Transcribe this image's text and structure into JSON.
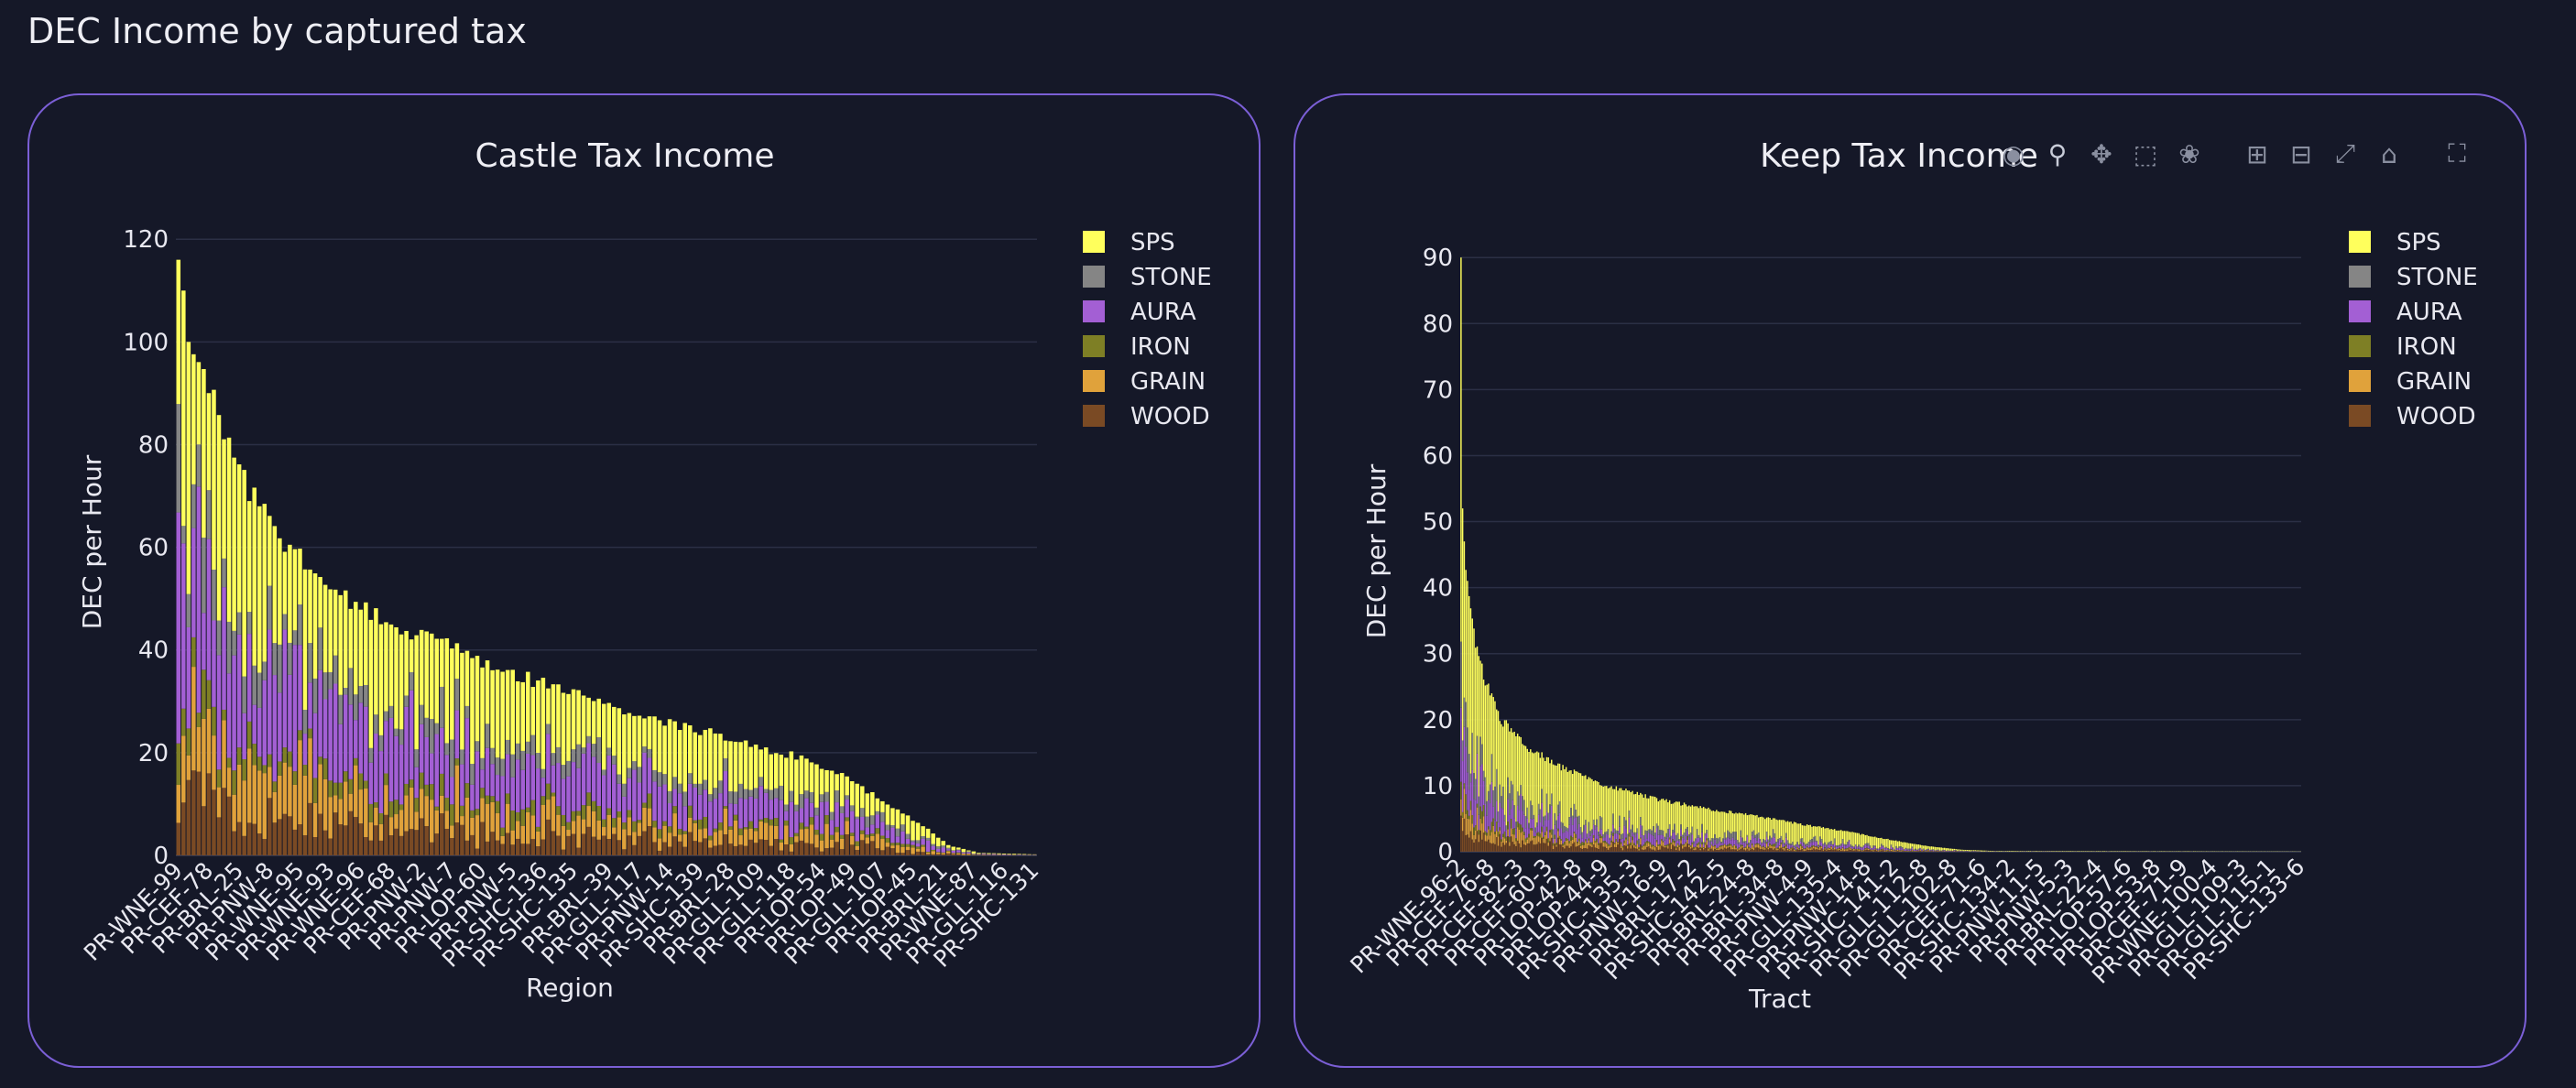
{
  "page": {
    "title": "DEC Income by captured tax"
  },
  "colors": {
    "SPS": "#ffff5c",
    "STONE": "#858585",
    "AURA": "#a35fd4",
    "IRON": "#7e7f25",
    "GRAIN": "#e0a23b",
    "WOOD": "#7a4a24",
    "panel_border": "#7b5fd6",
    "grid": "#2b2f45",
    "background": "#151828"
  },
  "modebar": {
    "icons": [
      "camera-icon",
      "zoom-icon",
      "pan-icon",
      "box-select-icon",
      "lasso-icon",
      "zoom-in-icon",
      "zoom-out-icon",
      "autoscale-icon",
      "home-icon",
      "fullscreen-icon"
    ]
  },
  "chart_data": [
    {
      "id": "castle",
      "type": "bar",
      "stacked": true,
      "title": "Castle Tax Income",
      "xlabel": "Region",
      "ylabel": "DEC per Hour",
      "ylim": [
        0,
        122
      ],
      "yticks": [
        0,
        20,
        40,
        60,
        80,
        100,
        120
      ],
      "legend": [
        "SPS",
        "STONE",
        "AURA",
        "IRON",
        "GRAIN",
        "WOOD"
      ],
      "legend_position": "top-right",
      "n_categories": 170,
      "category_labels": [
        "PR-WNE-99",
        "PR-CEF-78",
        "PR-BRL-25",
        "PR-PNW-8",
        "PR-WNE-95",
        "PR-WNE-93",
        "PR-WNE-96",
        "PR-CEF-68",
        "PR-PNW-2",
        "PR-PNW-7",
        "PR-LOP-60",
        "PR-PNW-5",
        "PR-SHC-136",
        "PR-SHC-135",
        "PR-BRL-39",
        "PR-GLL-117",
        "PR-PNW-14",
        "PR-SHC-139",
        "PR-BRL-28",
        "PR-GLL-109",
        "PR-GLL-118",
        "PR-LOP-54",
        "PR-LOP-49",
        "PR-GLL-107",
        "PR-LOP-45",
        "PR-BRL-21",
        "PR-WNE-87",
        "PR-GLL-116",
        "PR-SHC-131"
      ],
      "totals_profile": [
        [
          0,
          116
        ],
        [
          1,
          110
        ],
        [
          2,
          100
        ],
        [
          5,
          95
        ],
        [
          8,
          84
        ],
        [
          12,
          75
        ],
        [
          18,
          64
        ],
        [
          25,
          57
        ],
        [
          35,
          49
        ],
        [
          45,
          44
        ],
        [
          55,
          40
        ],
        [
          70,
          34
        ],
        [
          85,
          29
        ],
        [
          95,
          26
        ],
        [
          105,
          24
        ],
        [
          115,
          21
        ],
        [
          125,
          18.5
        ],
        [
          132,
          15
        ],
        [
          140,
          10
        ],
        [
          148,
          5
        ],
        [
          152,
          2
        ],
        [
          158,
          0.5
        ],
        [
          169,
          0.2
        ]
      ],
      "composition": {
        "WOOD": 0.11,
        "GRAIN": 0.13,
        "IRON": 0.05,
        "AURA": 0.25,
        "STONE": 0.09,
        "SPS": 0.37
      }
    },
    {
      "id": "keep",
      "type": "bar",
      "stacked": true,
      "title": "Keep Tax Income",
      "xlabel": "Tract",
      "ylabel": "DEC per Hour",
      "ylim": [
        0,
        91
      ],
      "yticks": [
        0,
        10,
        20,
        30,
        40,
        50,
        60,
        70,
        80,
        90
      ],
      "legend": [
        "SPS",
        "STONE",
        "AURA",
        "IRON",
        "GRAIN",
        "WOOD"
      ],
      "legend_position": "top-right",
      "n_categories": 520,
      "category_labels": [
        "PR-WNE-96-2",
        "PR-CEF-76-8",
        "PR-CEF-82-3",
        "PR-CEF-60-3",
        "PR-LOP-42-8",
        "PR-LOP-44-9",
        "PR-SHC-135-3",
        "PR-PNW-16-9",
        "PR-BRL-17-2",
        "PR-SHC-142-5",
        "PR-BRL-24-8",
        "PR-BRL-34-8",
        "PR-PNW-4-9",
        "PR-GLL-135-4",
        "PR-PNW-14-8",
        "PR-SHC-141-2",
        "PR-GLL-112-8",
        "PR-GLL-102-8",
        "PR-CEF-71-6",
        "PR-SHC-134-2",
        "PR-PNW-11-5",
        "PR-PNW-5-3",
        "PR-BRL-22-4",
        "PR-LOP-57-6",
        "PR-LOP-53-8",
        "PR-CEF-71-9",
        "PR-WNE-100-4",
        "PR-GLL-109-3",
        "PR-GLL-115-1",
        "PR-SHC-133-6"
      ],
      "totals_profile": [
        [
          0,
          90
        ],
        [
          1,
          52
        ],
        [
          2,
          47
        ],
        [
          4,
          40
        ],
        [
          8,
          33
        ],
        [
          15,
          26
        ],
        [
          25,
          20
        ],
        [
          40,
          16
        ],
        [
          60,
          13
        ],
        [
          90,
          10
        ],
        [
          120,
          8
        ],
        [
          150,
          6.6
        ],
        [
          180,
          5.5
        ],
        [
          210,
          4.2
        ],
        [
          240,
          3
        ],
        [
          270,
          1.6
        ],
        [
          290,
          0.8
        ],
        [
          310,
          0.3
        ],
        [
          330,
          0.12
        ],
        [
          519,
          0.05
        ]
      ],
      "composition": {
        "WOOD": 0.07,
        "GRAIN": 0.06,
        "IRON": 0.03,
        "AURA": 0.12,
        "STONE": 0.1,
        "SPS": 0.62
      }
    }
  ]
}
